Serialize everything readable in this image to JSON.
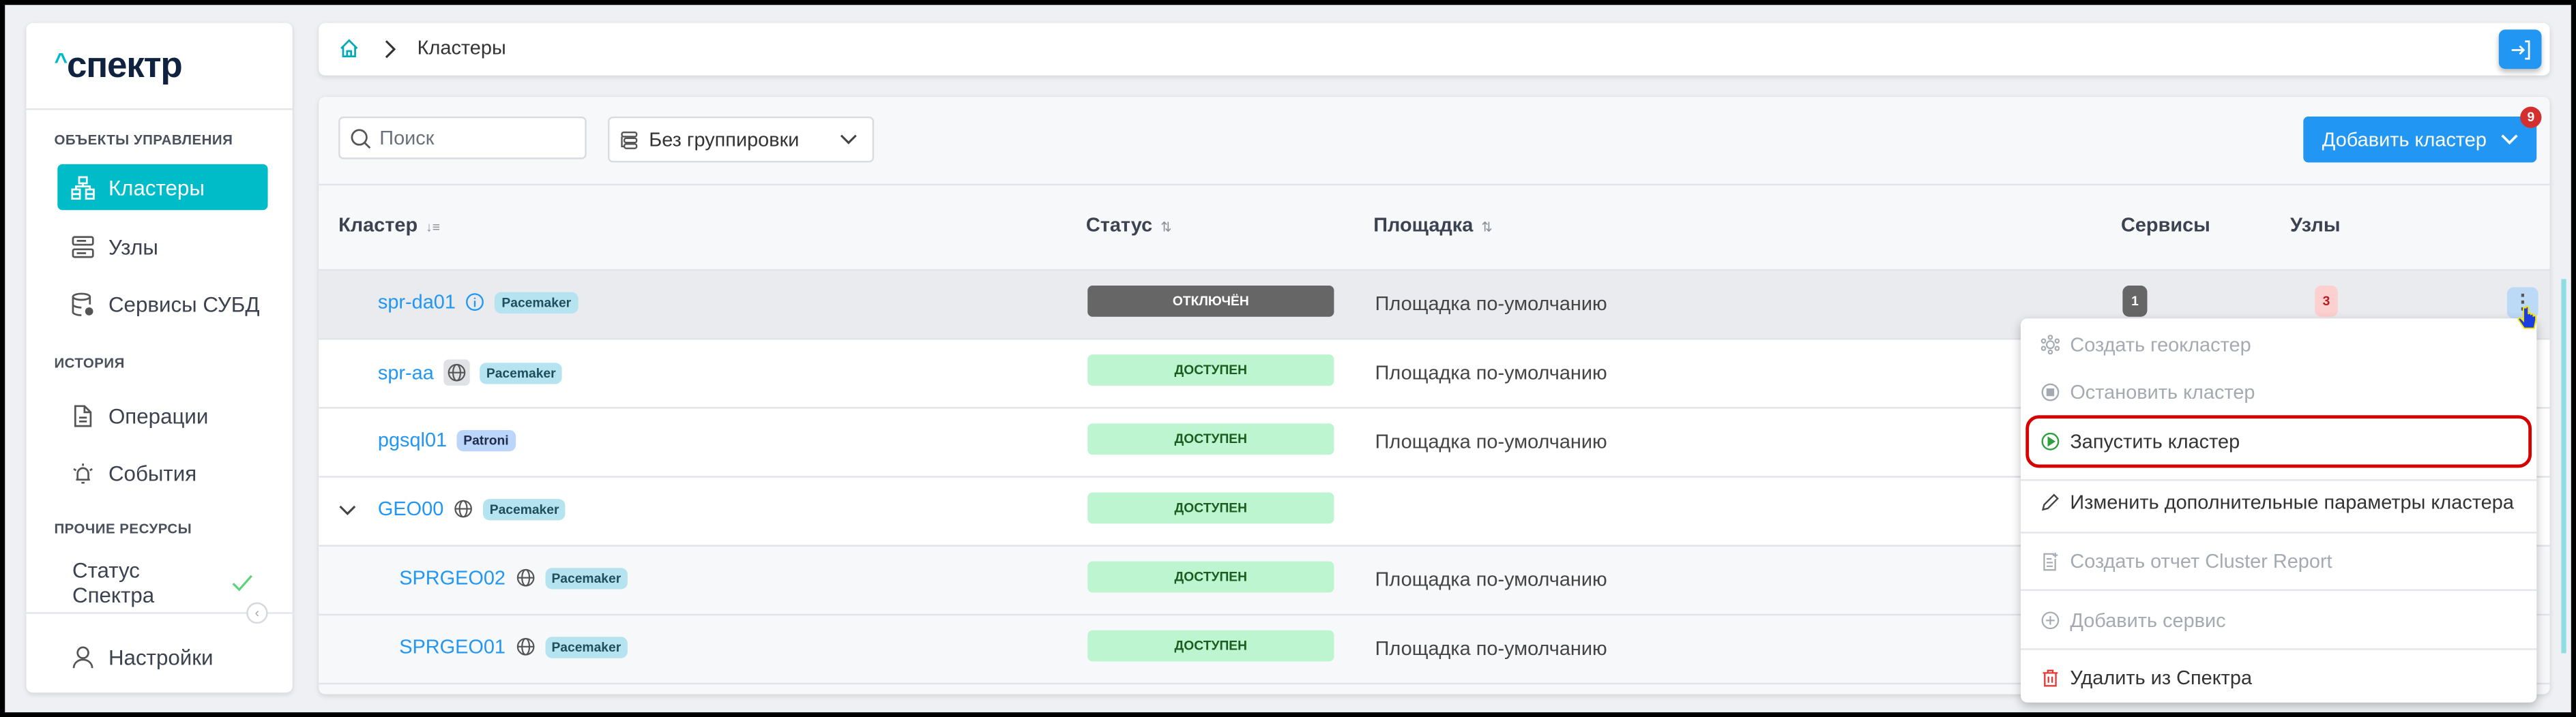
{
  "logo": "спектр",
  "sidebar": {
    "sections": [
      "ОБЪЕКТЫ УПРАВЛЕНИЯ",
      "ИСТОРИЯ",
      "ПРОЧИЕ РЕСУРСЫ"
    ],
    "items": [
      {
        "label": "Кластеры",
        "icon": "cluster-icon",
        "active": true
      },
      {
        "label": "Узлы",
        "icon": "server-icon"
      },
      {
        "label": "Сервисы СУБД",
        "icon": "database-gear-icon"
      },
      {
        "label": "Операции",
        "icon": "document-icon"
      },
      {
        "label": "События",
        "icon": "alarm-bell-icon"
      },
      {
        "label": "Статус Спектра",
        "icon": "check-icon"
      },
      {
        "label": "Настройки",
        "icon": "user-icon"
      }
    ]
  },
  "breadcrumb": {
    "current": "Кластеры"
  },
  "toolbar": {
    "search_placeholder": "Поиск",
    "grouping": "Без группировки",
    "add_cluster": "Добавить кластер",
    "notification_count": "9"
  },
  "table": {
    "columns": [
      "Кластер",
      "Статус",
      "Площадка",
      "Сервисы",
      "Узлы"
    ],
    "rows": [
      {
        "name": "spr-da01",
        "icon": "info-icon",
        "type": "Pacemaker",
        "status": "ОТКЛЮЧЁН",
        "site": "Площадка по-умолчанию",
        "services": "1",
        "nodes": "3"
      },
      {
        "name": "spr-aa",
        "icon": "globe-icon",
        "type": "Pacemaker",
        "status": "ДОСТУПЕН",
        "site": "Площадка по-умолчанию"
      },
      {
        "name": "pgsql01",
        "type": "Patroni",
        "status": "ДОСТУПЕН",
        "site": "Площадка по-умолчанию"
      },
      {
        "name": "GEO00",
        "icon": "globe-icon",
        "type": "Pacemaker",
        "status": "ДОСТУПЕН",
        "site": ""
      },
      {
        "name": "SPRGEO02",
        "icon": "globe-icon",
        "type": "Pacemaker",
        "status": "ДОСТУПЕН",
        "site": "Площадка по-умолчанию"
      },
      {
        "name": "SPRGEO01",
        "icon": "globe-icon",
        "type": "Pacemaker",
        "status": "ДОСТУПЕН",
        "site": "Площадка по-умолчанию"
      }
    ]
  },
  "menu": {
    "items": [
      {
        "label": "Создать геокластер",
        "disabled": true
      },
      {
        "label": "Остановить кластер",
        "disabled": true
      },
      {
        "label": "Запустить кластер",
        "highlighted": true
      },
      {
        "label": "Изменить дополнительные параметры кластера"
      },
      {
        "label": "Создать отчет Cluster Report",
        "disabled": true
      },
      {
        "label": "Добавить сервис",
        "disabled": true
      },
      {
        "label": "Удалить из Спектра"
      }
    ]
  },
  "colors": {
    "accent": "#00bcc8",
    "primary": "#2196f3",
    "available": "#bcf5d0",
    "disabled_status": "#666666",
    "highlight": "#d50000"
  }
}
